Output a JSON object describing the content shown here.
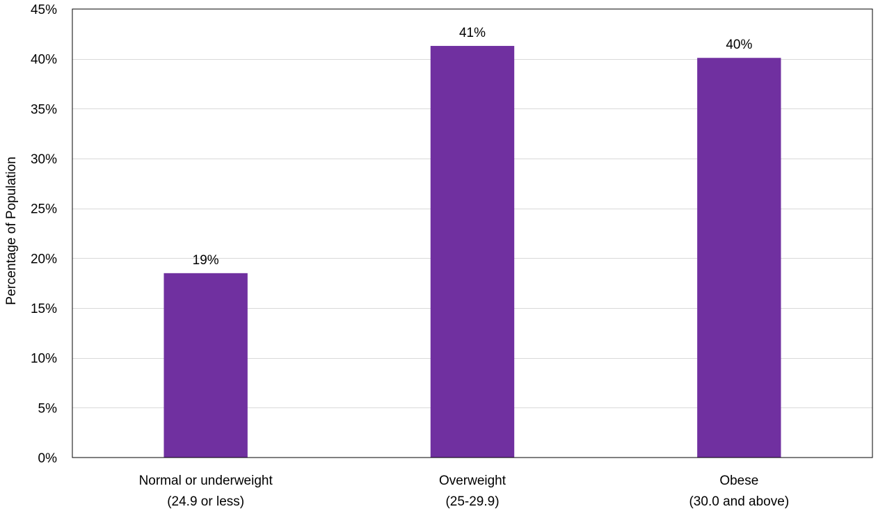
{
  "chart_data": {
    "type": "bar",
    "title": "",
    "xlabel": "",
    "ylabel": "Percentage of Population",
    "categories": [
      [
        "Normal or underweight",
        "(24.9 or less)"
      ],
      [
        "Overweight",
        "(25-29.9)"
      ],
      [
        "Obese",
        "(30.0 and above)"
      ]
    ],
    "values": [
      18.5,
      41.3,
      40.1
    ],
    "data_labels": [
      "19%",
      "41%",
      "40%"
    ],
    "ylim": [
      0,
      45
    ],
    "y_ticks": [
      0,
      5,
      10,
      15,
      20,
      25,
      30,
      35,
      40,
      45
    ],
    "y_tick_labels": [
      "0%",
      "5%",
      "10%",
      "15%",
      "20%",
      "25%",
      "30%",
      "35%",
      "40%",
      "45%"
    ],
    "grid": true,
    "legend": "none",
    "bar_color": "#7030a0",
    "grid_color": "#d9d9d9"
  }
}
